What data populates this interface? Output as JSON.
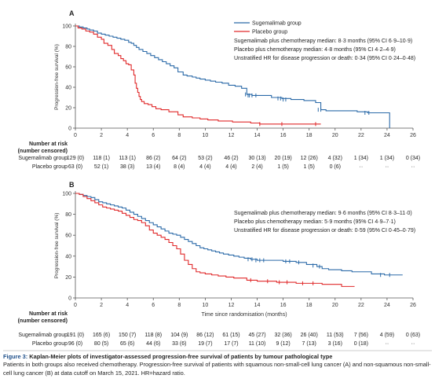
{
  "caption": {
    "label": "Figure 3:",
    "title": "Kaplan-Meier plots of investigator-assessed progression-free survival of patients by tumour pathological type",
    "text": "Patients in both groups also received chemotherapy. Progression-free survival of patients with squamous non-small-cell lung cancer (A) and non-squamous non-small-cell lung cancer (B) at data cutoff on March 15, 2021. HR=hazard ratio."
  },
  "chart_data": [
    {
      "type": "line",
      "panel": "A",
      "ylabel": "Progression-free survival (%)",
      "xlabel": "",
      "xlim": [
        0,
        26
      ],
      "ylim": [
        0,
        100
      ],
      "xticks": [
        0,
        2,
        4,
        6,
        8,
        10,
        12,
        14,
        16,
        18,
        20,
        22,
        24,
        26
      ],
      "yticks": [
        0,
        20,
        40,
        60,
        80,
        100
      ],
      "legend": [
        "Sugemalimab group",
        "Placebo group"
      ],
      "legend_position": "top-right",
      "annotations": [
        "Sugemalimab plus chemotherapy median: 8·3 months (95% CI 6·9–10·9)",
        "Placebo plus chemotherapy median: 4·8 months (95% CI 4·2–4·9)",
        "Unstratified HR for disease progression or death: 0·34 (95% CI 0·24–0·48)"
      ],
      "series": [
        {
          "name": "Sugemalimab group",
          "color": "#2b6aa8",
          "x": [
            0,
            0.3,
            0.6,
            0.9,
            1.1,
            1.4,
            1.7,
            2.0,
            2.3,
            2.6,
            2.9,
            3.2,
            3.5,
            3.8,
            4.1,
            4.3,
            4.5,
            4.7,
            4.9,
            5.2,
            5.5,
            5.8,
            6.1,
            6.4,
            6.7,
            7.0,
            7.3,
            7.6,
            7.9,
            8.3,
            8.6,
            9.0,
            9.3,
            9.6,
            10.0,
            10.4,
            10.8,
            11.3,
            11.8,
            12.3,
            12.8,
            13.2,
            13.6,
            14.2,
            15.1,
            15.9,
            16.6,
            17.6,
            18.5,
            18.9,
            19.3,
            20.3,
            21.7,
            22.5,
            24.1,
            24.2
          ],
          "y": [
            100,
            99,
            98,
            97,
            96,
            95,
            93,
            92,
            91,
            90,
            89,
            88,
            87,
            86,
            84,
            83,
            81,
            79,
            77,
            75,
            73,
            71,
            69,
            67,
            65,
            63,
            61,
            59,
            55,
            52,
            51,
            50,
            49,
            48,
            47,
            46,
            45,
            44,
            42,
            41,
            39,
            33,
            32,
            32,
            30,
            29,
            28,
            27,
            25,
            18,
            17,
            17,
            16,
            15,
            15,
            0
          ],
          "censored_x": [
            13.1,
            13.3,
            13.4,
            13.6,
            13.9,
            15.6,
            15.8,
            16.0,
            16.2,
            18.7,
            18.9,
            22.3,
            22.6
          ],
          "censored_y": [
            33,
            32,
            32,
            32,
            32,
            29,
            29,
            28,
            28,
            18,
            18,
            15,
            15
          ]
        },
        {
          "name": "Placebo group",
          "color": "#e0292a",
          "x": [
            0,
            0.2,
            0.5,
            0.8,
            1.1,
            1.4,
            1.7,
            2.0,
            2.2,
            2.5,
            2.8,
            3.0,
            3.3,
            3.5,
            3.7,
            3.9,
            4.1,
            4.3,
            4.5,
            4.6,
            4.7,
            4.8,
            4.9,
            5.0,
            5.1,
            5.3,
            5.6,
            5.9,
            6.2,
            6.6,
            7.2,
            7.9,
            8.3,
            9.0,
            9.6,
            10.2,
            11.0,
            12.1,
            13.5,
            14.2,
            18.9
          ],
          "y": [
            100,
            98,
            97,
            95,
            94,
            92,
            89,
            87,
            83,
            81,
            77,
            73,
            71,
            68,
            66,
            63,
            62,
            57,
            52,
            44,
            39,
            35,
            31,
            28,
            26,
            24,
            23,
            21,
            19,
            18,
            16,
            13,
            11,
            10,
            9,
            8,
            7,
            6,
            5,
            4,
            4
          ],
          "censored_x": [
            14.2,
            15.9,
            18.5
          ],
          "censored_y": [
            4,
            4,
            4
          ]
        }
      ],
      "at_risk": {
        "title": "Number at risk\n(number censored)",
        "rows": [
          {
            "name": "Sugemalimab group",
            "values": [
              "129 (0)",
              "118 (1)",
              "113 (1)",
              "86 (2)",
              "64 (2)",
              "53 (2)",
              "46 (2)",
              "30 (13)",
              "20 (19)",
              "12 (26)",
              "4 (32)",
              "1 (34)",
              "1 (34)",
              "0 (34)"
            ]
          },
          {
            "name": "Placebo group",
            "values": [
              "63 (0)",
              "52 (1)",
              "38 (3)",
              "13 (4)",
              "8 (4)",
              "4 (4)",
              "4 (4)",
              "2 (4)",
              "1 (5)",
              "1 (5)",
              "0 (6)",
              "··",
              "··",
              "··"
            ]
          }
        ]
      }
    },
    {
      "type": "line",
      "panel": "B",
      "ylabel": "Progression-free survival (%)",
      "xlabel": "Time since randomisation (months)",
      "xlim": [
        0,
        26
      ],
      "ylim": [
        0,
        100
      ],
      "xticks": [
        0,
        2,
        4,
        6,
        8,
        10,
        12,
        14,
        16,
        18,
        20,
        22,
        24,
        26
      ],
      "yticks": [
        0,
        20,
        40,
        60,
        80,
        100
      ],
      "annotations": [
        "Sugemalimab plus chemotherapy median: 9·6 months (95% CI 8·3–11·0)",
        "Placebo plus chemotherapy median: 5·9 months (95% CI 4·9–7·1)",
        "Unstratified HR for disease progression or death: 0·59 (95% CI 0·45–0·79)"
      ],
      "series": [
        {
          "name": "Sugemalimab group",
          "color": "#2b6aa8",
          "x": [
            0,
            0.3,
            0.6,
            0.9,
            1.2,
            1.5,
            1.8,
            2.1,
            2.4,
            2.7,
            3.0,
            3.3,
            3.6,
            3.9,
            4.2,
            4.5,
            4.8,
            5.1,
            5.4,
            5.7,
            6.0,
            6.3,
            6.6,
            6.9,
            7.2,
            7.5,
            7.8,
            8.1,
            8.4,
            8.7,
            9.0,
            9.3,
            9.6,
            9.9,
            10.2,
            10.5,
            10.8,
            11.1,
            11.4,
            11.8,
            12.2,
            12.6,
            13.0,
            13.5,
            14.0,
            15.0,
            16.0,
            17.0,
            17.8,
            18.6,
            19.0,
            19.5,
            20.5,
            21.3,
            22.8,
            23.8,
            25.2
          ],
          "y": [
            100,
            99,
            98,
            97,
            96,
            94,
            92,
            91,
            90,
            89,
            88,
            87,
            86,
            84,
            82,
            80,
            78,
            76,
            74,
            72,
            70,
            68,
            66,
            64,
            62,
            61,
            60,
            58,
            56,
            54,
            52,
            50,
            48,
            47,
            46,
            45,
            44,
            43,
            42,
            41,
            40,
            39,
            38,
            37,
            36,
            36,
            35,
            34,
            32,
            30,
            28,
            27,
            26,
            25,
            23,
            22,
            22
          ],
          "censored_x": [
            13.3,
            13.6,
            13.9,
            14.2,
            14.5,
            16.2,
            16.5,
            17.2,
            18.3,
            18.8,
            23.5,
            24.2
          ],
          "censored_y": [
            37,
            37,
            36,
            36,
            36,
            35,
            35,
            34,
            31,
            30,
            22,
            22
          ]
        },
        {
          "name": "Placebo group",
          "color": "#e0292a",
          "x": [
            0,
            0.3,
            0.6,
            0.9,
            1.2,
            1.5,
            1.8,
            2.1,
            2.4,
            2.7,
            3.0,
            3.3,
            3.6,
            3.9,
            4.2,
            4.5,
            4.8,
            5.1,
            5.4,
            5.7,
            6.0,
            6.3,
            6.6,
            6.9,
            7.2,
            7.5,
            7.8,
            8.1,
            8.4,
            8.7,
            9.0,
            9.3,
            9.6,
            10.0,
            10.5,
            11.0,
            11.6,
            12.2,
            13.2,
            14.0,
            15.5,
            17.0,
            19.0,
            20.5,
            21.5
          ],
          "y": [
            100,
            99,
            97,
            95,
            93,
            91,
            89,
            87,
            86,
            85,
            84,
            83,
            81,
            79,
            77,
            75,
            74,
            72,
            69,
            65,
            62,
            60,
            58,
            56,
            53,
            50,
            47,
            42,
            36,
            32,
            28,
            25,
            24,
            23,
            22,
            21,
            20,
            19,
            17,
            16,
            15,
            14,
            13,
            11,
            11
          ],
          "censored_x": [
            13.5,
            14.8,
            15.7,
            16.3,
            17.5,
            18.3
          ],
          "censored_y": [
            17,
            16,
            15,
            15,
            14,
            14
          ]
        }
      ],
      "at_risk": {
        "title": "Number at risk\n(number censored)",
        "rows": [
          {
            "name": "Sugemalimab group",
            "values": [
              "191 (0)",
              "165 (6)",
              "150 (7)",
              "118 (8)",
              "104 (9)",
              "86 (12)",
              "61 (15)",
              "45 (27)",
              "32 (36)",
              "26 (40)",
              "11 (53)",
              "7 (56)",
              "4 (59)",
              "0 (63)"
            ]
          },
          {
            "name": "Placebo group",
            "values": [
              "96 (0)",
              "80 (5)",
              "65 (6)",
              "44 (6)",
              "33 (6)",
              "19 (7)",
              "17 (7)",
              "11 (10)",
              "9 (12)",
              "7 (13)",
              "3 (16)",
              "0 (18)",
              "··",
              "··"
            ]
          }
        ]
      }
    }
  ]
}
